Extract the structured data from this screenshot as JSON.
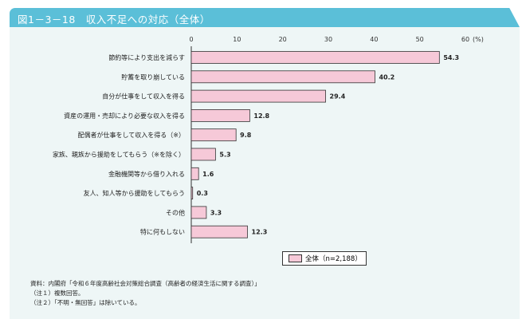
{
  "title": "図1－3－18　収入不足への対応（全体）",
  "chart_data": {
    "type": "bar",
    "orientation": "horizontal",
    "title": "図1－3－18　収入不足への対応（全体）",
    "categories": [
      "節約等により支出を減らす",
      "貯蓄を取り崩している",
      "自分が仕事をして収入を得る",
      "資産の運用・売却により必要な収入を得る",
      "配偶者が仕事をして収入を得る（※）",
      "家族、親族から援助をしてもらう（※を除く）",
      "金融機関等から借り入れる",
      "友人、知人等から援助をしてもらう",
      "その他",
      "特に何もしない"
    ],
    "values": [
      54.3,
      40.2,
      29.4,
      12.8,
      9.8,
      5.3,
      1.6,
      0.3,
      3.3,
      12.3
    ],
    "value_labels": [
      "54.3",
      "40.2",
      "29.4",
      "12.8",
      "9.8",
      "5.3",
      "1.6",
      "0.3",
      "3.3",
      "12.3"
    ],
    "xlim": [
      0,
      60
    ],
    "ticks": [
      "0",
      "10",
      "20",
      "30",
      "40",
      "50",
      "60"
    ],
    "unit": "(%)",
    "legend": "全体（n=2,188）",
    "legend_position": "bottom-right",
    "bar_color": "#f6c9d8"
  },
  "notes": [
    "資料：内閣府「令和６年度高齢社会対策総合調査（高齢者の経済生活に関する調査）」",
    "（注１）複数回答。",
    "（注２）「不明・無回答」は除いている。"
  ]
}
